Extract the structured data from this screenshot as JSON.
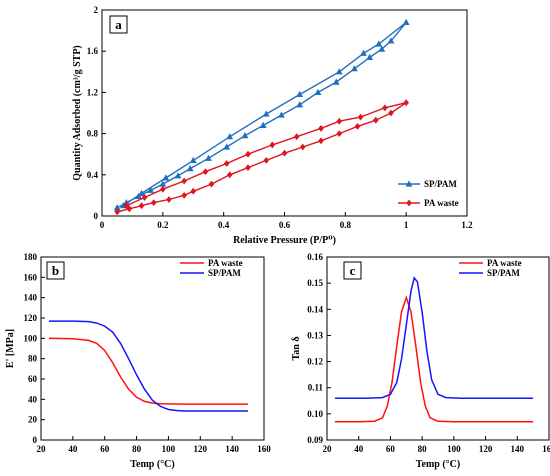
{
  "chart_data": [
    {
      "panel": "a",
      "type": "line",
      "xlabel": "Relative Pressure (P/P⁰)",
      "ylabel": "Quantity Adsorbed (cm³/g STP)",
      "xlim": [
        0,
        1.2
      ],
      "ylim": [
        0,
        2
      ],
      "xticks": [
        "0",
        "0.2",
        "0.4",
        "0.6",
        "0.8",
        "1",
        "1.2"
      ],
      "yticks": [
        "0",
        "0.4",
        "0.8",
        "1.2",
        "1.6",
        "2"
      ],
      "grid": false,
      "legend": "bottom-right",
      "series": [
        {
          "name": "SP/PAM",
          "color": "#1f6fc0",
          "marker": "triangle",
          "x": [
            0.05,
            0.08,
            0.12,
            0.16,
            0.2,
            0.25,
            0.29,
            0.35,
            0.41,
            0.47,
            0.53,
            0.59,
            0.65,
            0.71,
            0.77,
            0.83,
            0.88,
            0.92,
            0.95,
            1.0,
            0.91,
            0.86,
            0.78,
            0.65,
            0.54,
            0.42,
            0.3,
            0.21,
            0.13,
            0.07
          ],
          "y": [
            0.08,
            0.13,
            0.19,
            0.25,
            0.31,
            0.39,
            0.46,
            0.56,
            0.67,
            0.78,
            0.88,
            0.98,
            1.08,
            1.2,
            1.3,
            1.43,
            1.54,
            1.62,
            1.7,
            1.88,
            1.67,
            1.58,
            1.4,
            1.18,
            0.99,
            0.77,
            0.54,
            0.37,
            0.22,
            0.1
          ]
        },
        {
          "name": "PA waste",
          "color": "#e0141e",
          "marker": "diamond",
          "x": [
            0.05,
            0.09,
            0.13,
            0.17,
            0.22,
            0.27,
            0.3,
            0.36,
            0.42,
            0.48,
            0.54,
            0.6,
            0.66,
            0.72,
            0.78,
            0.84,
            0.9,
            0.95,
            1.0,
            0.93,
            0.85,
            0.78,
            0.72,
            0.64,
            0.56,
            0.48,
            0.41,
            0.34,
            0.27,
            0.2,
            0.14,
            0.08
          ],
          "y": [
            0.04,
            0.07,
            0.1,
            0.13,
            0.16,
            0.2,
            0.24,
            0.31,
            0.4,
            0.47,
            0.54,
            0.61,
            0.67,
            0.73,
            0.8,
            0.87,
            0.93,
            1.0,
            1.1,
            1.05,
            0.96,
            0.92,
            0.85,
            0.77,
            0.69,
            0.6,
            0.51,
            0.43,
            0.34,
            0.26,
            0.18,
            0.1
          ]
        }
      ]
    },
    {
      "panel": "b",
      "type": "line",
      "xlabel": "Temp (°C)",
      "ylabel": "E' [MPa]",
      "xlim": [
        20,
        160
      ],
      "ylim": [
        0,
        180
      ],
      "xticks": [
        "20",
        "40",
        "60",
        "80",
        "100",
        "120",
        "140",
        "160"
      ],
      "yticks": [
        "0",
        "20",
        "40",
        "60",
        "80",
        "100",
        "120",
        "140",
        "160",
        "180"
      ],
      "grid": false,
      "legend": "top-right",
      "series": [
        {
          "name": "PA waste",
          "color": "#ff1010",
          "x": [
            25,
            40,
            50,
            55,
            60,
            65,
            70,
            75,
            80,
            85,
            90,
            95,
            100,
            110,
            120,
            130,
            140,
            150
          ],
          "y": [
            100,
            99.5,
            98,
            95,
            88,
            76,
            62,
            50,
            42,
            38,
            36.3,
            35.7,
            35.5,
            35.3,
            35.3,
            35.3,
            35.3,
            35.3
          ],
          "color_name": "red"
        },
        {
          "name": "SP/PAM",
          "color": "#1414ff",
          "x": [
            25,
            40,
            50,
            55,
            60,
            65,
            70,
            75,
            80,
            85,
            90,
            95,
            100,
            105,
            110,
            120,
            130,
            140,
            150
          ],
          "y": [
            117,
            117,
            116.5,
            115,
            112,
            106,
            95,
            80,
            64,
            50,
            39,
            33,
            30,
            29,
            28.5,
            28.5,
            28.5,
            28.5,
            28.5
          ]
        }
      ]
    },
    {
      "panel": "c",
      "type": "line",
      "xlabel": "Temp (°C)",
      "ylabel": "Tan δ",
      "xlim": [
        20,
        160
      ],
      "ylim": [
        0.09,
        0.16
      ],
      "xticks": [
        "20",
        "40",
        "60",
        "80",
        "100",
        "120",
        "140",
        "160"
      ],
      "yticks": [
        "0.09",
        "0.10",
        "0.11",
        "0.12",
        "0.13",
        "0.14",
        "0.15",
        "0.16"
      ],
      "grid": false,
      "legend": "top-right",
      "series": [
        {
          "name": "PA waste",
          "color": "#ff1010",
          "x": [
            25,
            40,
            50,
            55,
            58,
            61,
            64,
            67,
            70,
            73,
            76,
            79,
            82,
            85,
            90,
            100,
            120,
            150
          ],
          "y": [
            0.097,
            0.097,
            0.0972,
            0.0985,
            0.103,
            0.112,
            0.126,
            0.139,
            0.1445,
            0.139,
            0.126,
            0.112,
            0.103,
            0.0985,
            0.0972,
            0.097,
            0.097,
            0.097
          ]
        },
        {
          "name": "SP/PAM",
          "color": "#1414ff",
          "x": [
            25,
            45,
            55,
            60,
            64,
            67,
            70,
            73,
            75,
            77,
            80,
            83,
            86,
            90,
            95,
            105,
            120,
            150
          ],
          "y": [
            0.106,
            0.106,
            0.1062,
            0.1075,
            0.112,
            0.121,
            0.134,
            0.147,
            0.152,
            0.1505,
            0.139,
            0.124,
            0.113,
            0.1075,
            0.1062,
            0.106,
            0.106,
            0.106
          ]
        }
      ]
    }
  ]
}
